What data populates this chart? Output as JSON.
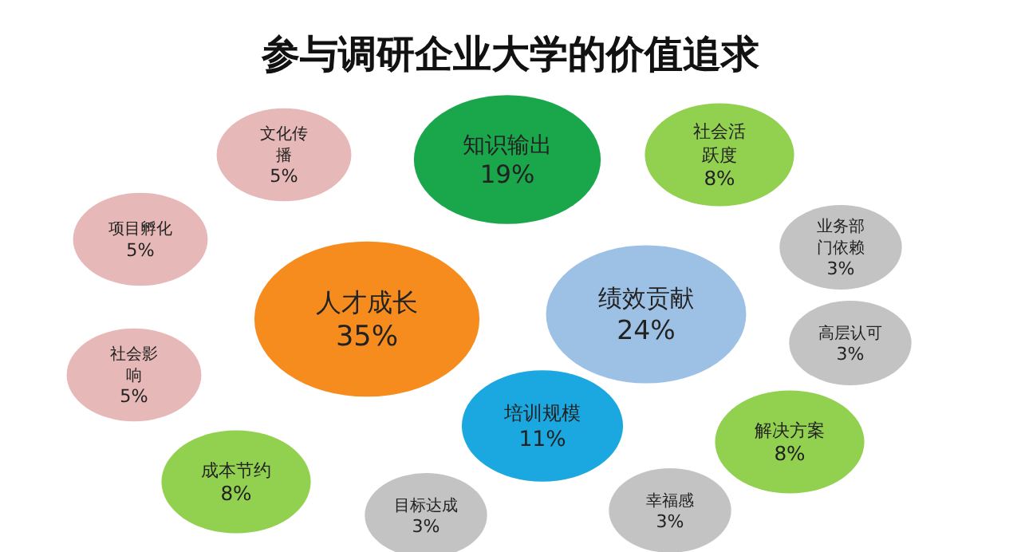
{
  "chart_data": {
    "type": "other",
    "title": "参与调研企业大学的价值追求",
    "categories": [
      "人才成长",
      "绩效贡献",
      "知识输出",
      "培训规模",
      "社会活跃度",
      "成本节约",
      "解决方案",
      "文化传播",
      "项目孵化",
      "社会影响",
      "业务部门依赖",
      "高层认可",
      "目标达成",
      "幸福感"
    ],
    "values": [
      35,
      24,
      19,
      11,
      8,
      8,
      8,
      5,
      5,
      5,
      3,
      3,
      3,
      3
    ],
    "value_labels": [
      "35%",
      "24%",
      "19%",
      "11%",
      "8%",
      "8%",
      "8%",
      "5%",
      "5%",
      "5%",
      "3%",
      "3%",
      "3%",
      "3%"
    ],
    "colors": [
      "#f68c1e",
      "#9dc1e4",
      "#1aa64a",
      "#1ba8e0",
      "#92d050",
      "#92d050",
      "#92d050",
      "#e6b9b8",
      "#e6b9b8",
      "#e6b9b8",
      "#c3c3c3",
      "#c3c3c3",
      "#c3c3c3",
      "#c3c3c3"
    ]
  }
}
